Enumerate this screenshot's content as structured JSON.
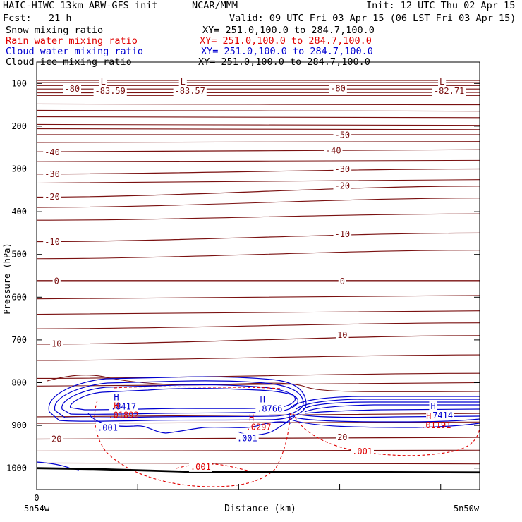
{
  "header": {
    "model": "HAIC-HIWC 13km ARW-GFS init",
    "org": "NCAR/MMM",
    "init": "Init: 12 UTC Thu 02 Apr 15",
    "fcst": "Fcst:   21 h",
    "valid": "Valid: 09 UTC Fri 03 Apr 15 (06 LST Fri 03 Apr 15)"
  },
  "fields": [
    {
      "name": "Snow mixing ratio",
      "xy": "XY= 251.0,100.0 to 284.7,100.0",
      "color": "#000000"
    },
    {
      "name": "Rain water mixing ratio",
      "xy": "XY= 251.0,100.0 to 284.7,100.0",
      "color": "#e00000"
    },
    {
      "name": "Cloud water mixing ratio",
      "xy": "XY= 251.0,100.0 to 284.7,100.0",
      "color": "#0000d0"
    },
    {
      "name": "Cloud ice mixing ratio",
      "xy": "XY= 251.0,100.0 to 284.7,100.0",
      "color": "#000000"
    }
  ],
  "chart_data": {
    "type": "contour cross-section",
    "xlabel": "Distance (km)",
    "ylabel": "Pressure (hPa)",
    "xlim": [
      0,
      1
    ],
    "ylim": [
      1050,
      50
    ],
    "x_tick_labels": [
      "0"
    ],
    "x_end_labels": [
      "5n54w",
      "5n50w"
    ],
    "y_ticks": [
      100,
      200,
      300,
      400,
      500,
      600,
      700,
      800,
      900,
      1000
    ],
    "colors": {
      "temperature": "#7a1010",
      "rain": "#e00000",
      "cloud_water": "#0000d0",
      "terrain": "#000000"
    },
    "temperature_contours": [
      {
        "value": 0,
        "label": "0",
        "pressure_left": 562,
        "pressure_right": 562,
        "bold": true,
        "label_at": [
          [
            0.045,
            562
          ],
          [
            0.69,
            563
          ]
        ]
      },
      {
        "value": -10,
        "label": "-10",
        "pressure_left": 470,
        "pressure_right": 450,
        "label_at": [
          [
            0.035,
            471
          ],
          [
            0.69,
            453
          ]
        ]
      },
      {
        "value": -20,
        "label": "-20",
        "pressure_left": 366,
        "pressure_right": 340,
        "label_at": [
          [
            0.035,
            365
          ],
          [
            0.69,
            340
          ]
        ]
      },
      {
        "value": -30,
        "label": "-30",
        "pressure_left": 312,
        "pressure_right": 300,
        "label_at": [
          [
            0.035,
            312
          ],
          [
            0.69,
            301
          ]
        ]
      },
      {
        "value": -40,
        "label": "-40",
        "pressure_left": 260,
        "pressure_right": 255,
        "label_at": [
          [
            0.035,
            261
          ],
          [
            0.67,
            257
          ]
        ]
      },
      {
        "value": -50,
        "label": "-50",
        "pressure_left": 220,
        "pressure_right": 220,
        "label_at": [
          [
            0.69,
            221
          ]
        ]
      },
      {
        "value": -80,
        "label": "-80",
        "pressure_left": 113,
        "pressure_right": 113,
        "label_at": [
          [
            0.08,
            113
          ],
          [
            0.68,
            112
          ]
        ]
      },
      {
        "value": 10,
        "label": "10",
        "pressure_left": 710,
        "pressure_right": 690,
        "label_at": [
          [
            0.045,
            709
          ],
          [
            0.69,
            689
          ]
        ]
      },
      {
        "value": 20,
        "label": "20",
        "pressure_left": 932,
        "pressure_right": 928,
        "label_at": [
          [
            0.045,
            932
          ],
          [
            0.69,
            928
          ]
        ]
      }
    ],
    "extrema": [
      {
        "kind": "L",
        "value": "-83.59",
        "x": 0.15,
        "p": 103
      },
      {
        "kind": "L",
        "value": "-83.57",
        "x": 0.33,
        "p": 103
      },
      {
        "kind": "L",
        "value": "-82.71",
        "x": 0.915,
        "p": 103
      },
      {
        "kind": "H",
        "value": ".8417",
        "x": 0.18,
        "p": 841,
        "field": "cloud_water"
      },
      {
        "kind": "H",
        "value": ".8766",
        "x": 0.51,
        "p": 846,
        "field": "cloud_water"
      },
      {
        "kind": "H",
        "value": ".7414",
        "x": 0.895,
        "p": 862,
        "field": "cloud_water"
      },
      {
        "kind": "H",
        "value": ".01892",
        "x": 0.18,
        "p": 861,
        "field": "rain"
      },
      {
        "kind": "H",
        "value": ".0297",
        "x": 0.485,
        "p": 889,
        "field": "rain"
      },
      {
        "kind": "H",
        "value": ".01191",
        "x": 0.885,
        "p": 885,
        "field": "rain"
      }
    ],
    "contour_labels": [
      {
        "text": ".001",
        "x": 0.16,
        "p": 906,
        "field": "cloud_water"
      },
      {
        "text": ".001",
        "x": 0.475,
        "p": 930,
        "field": "cloud_water"
      },
      {
        "text": ".001",
        "x": 0.37,
        "p": 997,
        "field": "rain"
      },
      {
        "text": ".001",
        "x": 0.735,
        "p": 961,
        "field": "rain"
      }
    ]
  }
}
